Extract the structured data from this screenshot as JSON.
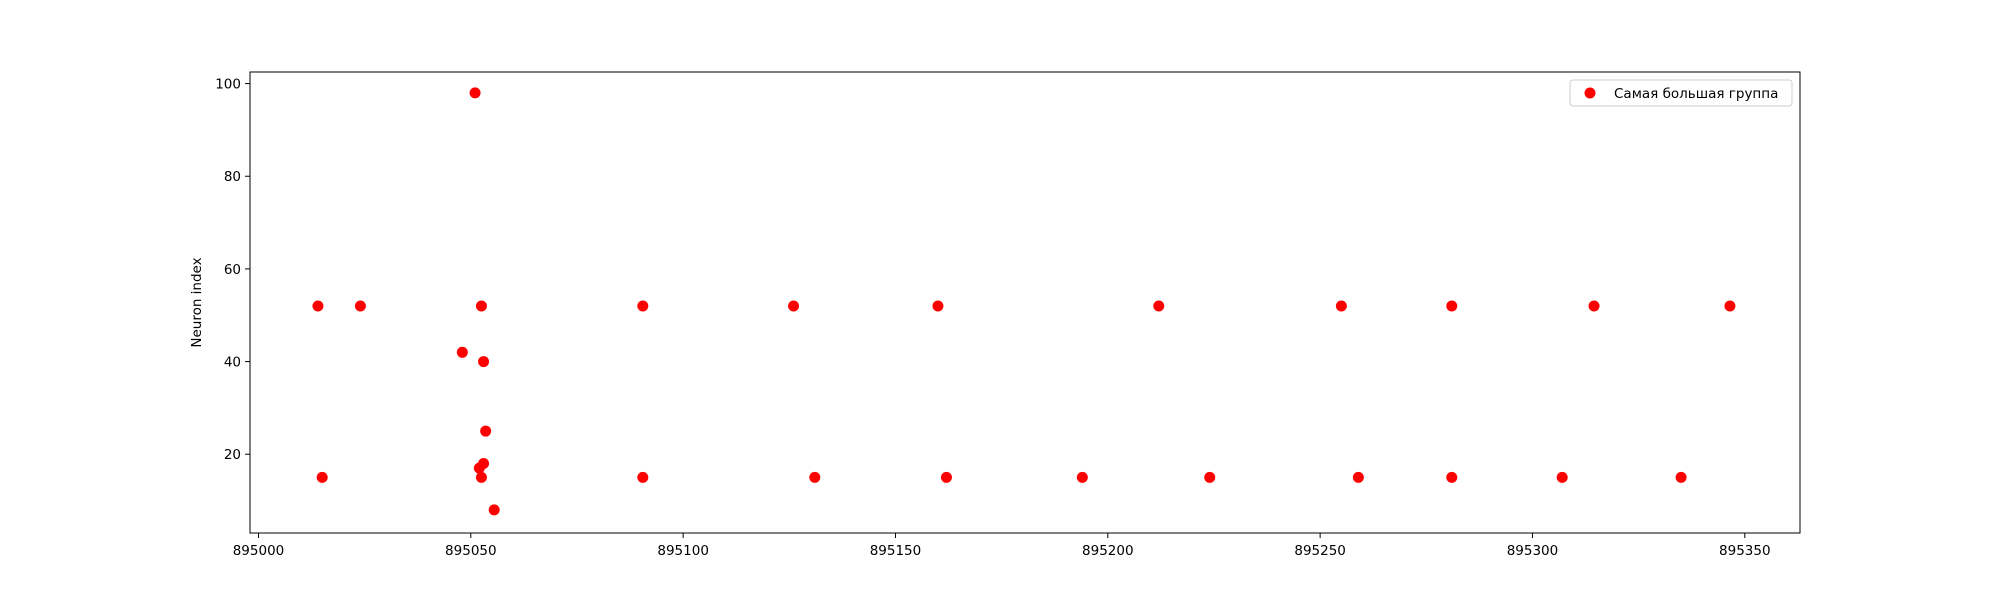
{
  "chart_data": {
    "type": "scatter",
    "title": "",
    "xlabel": "",
    "ylabel": "Neuron index",
    "xlim": [
      894998,
      895363
    ],
    "ylim": [
      3,
      102.5
    ],
    "xticks": [
      895000,
      895050,
      895100,
      895150,
      895200,
      895250,
      895300,
      895350
    ],
    "yticks": [
      20,
      40,
      60,
      80,
      100
    ],
    "grid": false,
    "legend_position": "top-right",
    "series": [
      {
        "name": "Самая большая группа",
        "color": "#ff0000",
        "marker": "circle",
        "points": [
          {
            "x": 895014,
            "y": 52
          },
          {
            "x": 895015,
            "y": 15
          },
          {
            "x": 895024,
            "y": 52
          },
          {
            "x": 895048,
            "y": 42
          },
          {
            "x": 895051,
            "y": 98
          },
          {
            "x": 895052,
            "y": 17
          },
          {
            "x": 895052.5,
            "y": 15
          },
          {
            "x": 895052.5,
            "y": 52
          },
          {
            "x": 895053,
            "y": 40
          },
          {
            "x": 895053,
            "y": 18
          },
          {
            "x": 895053.5,
            "y": 25
          },
          {
            "x": 895055.5,
            "y": 8
          },
          {
            "x": 895090.5,
            "y": 52
          },
          {
            "x": 895090.5,
            "y": 15
          },
          {
            "x": 895126,
            "y": 52
          },
          {
            "x": 895131,
            "y": 15
          },
          {
            "x": 895160,
            "y": 52
          },
          {
            "x": 895162,
            "y": 15
          },
          {
            "x": 895194,
            "y": 15
          },
          {
            "x": 895212,
            "y": 52
          },
          {
            "x": 895224,
            "y": 15
          },
          {
            "x": 895255,
            "y": 52
          },
          {
            "x": 895259,
            "y": 15
          },
          {
            "x": 895281,
            "y": 52
          },
          {
            "x": 895281,
            "y": 15
          },
          {
            "x": 895307,
            "y": 15
          },
          {
            "x": 895314.5,
            "y": 52
          },
          {
            "x": 895335,
            "y": 15
          },
          {
            "x": 895346.5,
            "y": 52
          }
        ]
      }
    ]
  }
}
